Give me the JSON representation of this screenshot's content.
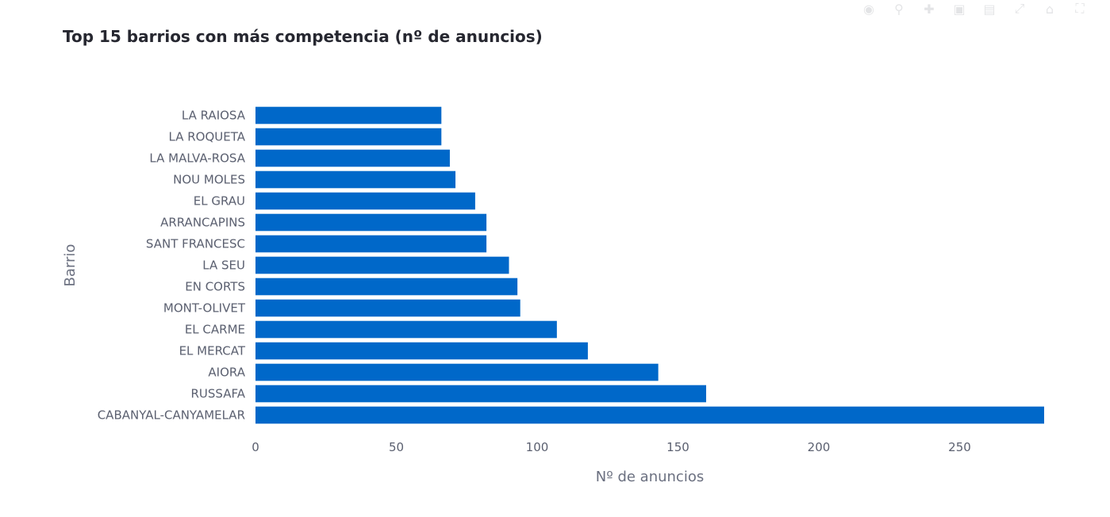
{
  "toolbar": {
    "icons": [
      "camera-icon",
      "zoom-icon",
      "pan-icon",
      "zoom-in-icon",
      "zoom-out-icon",
      "autoscale-icon",
      "reset-icon",
      "fullscreen-icon"
    ]
  },
  "chart_data": {
    "type": "bar",
    "orientation": "horizontal",
    "title": "Top 15 barrios con más competencia (nº de anuncios)",
    "xlabel": "Nº de anuncios",
    "ylabel": "Barrio",
    "bar_color": "#0068c9",
    "xlim": [
      0,
      280
    ],
    "xticks": [
      0,
      50,
      100,
      150,
      200,
      250
    ],
    "grid": false,
    "categories": [
      "LA RAIOSA",
      "LA ROQUETA",
      "LA MALVA-ROSA",
      "NOU MOLES",
      "EL GRAU",
      "ARRANCAPINS",
      "SANT FRANCESC",
      "LA SEU",
      "EN CORTS",
      "MONT-OLIVET",
      "EL CARME",
      "EL MERCAT",
      "AIORA",
      "RUSSAFA",
      "CABANYAL-CANYAMELAR"
    ],
    "values": [
      66,
      66,
      69,
      71,
      78,
      82,
      82,
      90,
      93,
      94,
      107,
      118,
      143,
      160,
      280
    ]
  }
}
